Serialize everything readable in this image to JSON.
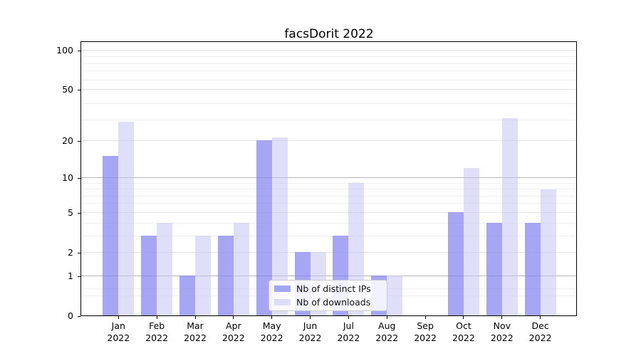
{
  "chart_data": {
    "type": "bar",
    "title": "facsDorit 2022",
    "categories": [
      "Jan",
      "Feb",
      "Mar",
      "Apr",
      "May",
      "Jun",
      "Jul",
      "Aug",
      "Sep",
      "Oct",
      "Nov",
      "Dec"
    ],
    "category_year": "2022",
    "series": [
      {
        "name": "Nb of distinct IPs",
        "color": "rgba(132,132,241,0.72)",
        "values": [
          15,
          3,
          1,
          3,
          20,
          2,
          3,
          1,
          0,
          5,
          4,
          4
        ]
      },
      {
        "name": "Nb of downloads",
        "color": "rgba(196,196,246,0.55)",
        "values": [
          28,
          4,
          3,
          4,
          21,
          2,
          9,
          1,
          0,
          12,
          30,
          8
        ]
      }
    ],
    "yaxis": {
      "scale": "log10(1+v)",
      "ticks": [
        0,
        1,
        2,
        5,
        10,
        20,
        50,
        100
      ],
      "emphasized_gridlines": [
        1,
        10
      ],
      "minor_gridlines": [
        0.4,
        0.6,
        3,
        4,
        6,
        7,
        8,
        9,
        29,
        39,
        59,
        69,
        79,
        89
      ],
      "top_value": 118
    },
    "xaxis": {
      "label_lines": 2
    },
    "legend": {
      "position": "lower-center"
    },
    "colors": {
      "axis": "#000000",
      "grid_major": "#e4e4e4",
      "grid_major_emphasized": "#b5b5b5",
      "grid_minor": "#efefef",
      "background": "#ffffff"
    }
  }
}
